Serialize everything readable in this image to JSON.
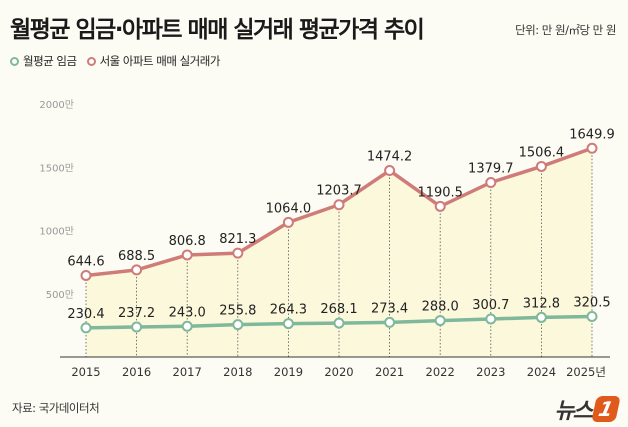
{
  "header": {
    "title": "월평균 임금·아파트 매매 실거래 평균가격 추이",
    "unit": "단위: 만 원/㎡당 만 원"
  },
  "footer": {
    "source": "자료: 국가데이터처",
    "logo": "뉴스1"
  },
  "chart_data": {
    "type": "line",
    "categories": [
      "2015",
      "2016",
      "2017",
      "2018",
      "2019",
      "2020",
      "2021",
      "2022",
      "2023",
      "2024",
      "2025년"
    ],
    "y_ticks": [
      "500만",
      "1000만",
      "1500만",
      "2000만"
    ],
    "y_tick_values": [
      500,
      1000,
      1500,
      2000
    ],
    "ylim": [
      0,
      2000
    ],
    "grid": false,
    "legend": "top-left",
    "series": [
      {
        "name": "월평균 임금",
        "color": "#7fb89a",
        "values": [
          230.4,
          237.2,
          243.0,
          255.8,
          264.3,
          268.1,
          273.4,
          288.0,
          300.7,
          312.8,
          320.5
        ],
        "labels": [
          "230.4",
          "237.2",
          "243.0",
          "255.8",
          "264.3",
          "268.1",
          "273.4",
          "288.0",
          "300.7",
          "312.8",
          "320.5"
        ]
      },
      {
        "name": "서울 아파트 매매 실거래가",
        "color": "#cf7b78",
        "values": [
          644.6,
          688.5,
          806.8,
          821.3,
          1064.0,
          1203.7,
          1474.2,
          1190.5,
          1379.7,
          1506.4,
          1649.9
        ],
        "labels": [
          "644.6",
          "688.5",
          "806.8",
          "821.3",
          "1064.0",
          "1203.7",
          "1474.2",
          "1190.5",
          "1379.7",
          "1506.4",
          "1649.9"
        ]
      }
    ]
  }
}
